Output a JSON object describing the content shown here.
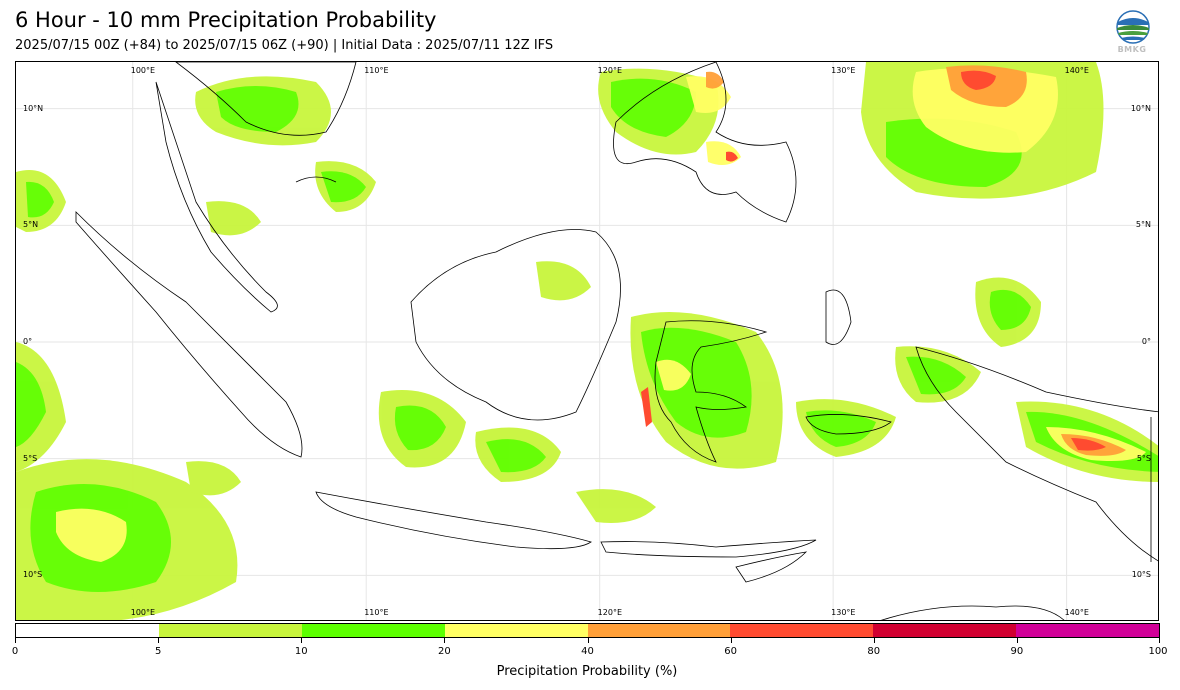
{
  "header": {
    "title": "6 Hour - 10 mm Precipitation Probability",
    "subtitle": "2025/07/15 00Z (+84) to 2025/07/15 06Z (+90) | Initial Data : 2025/07/11 12Z IFS",
    "logo_text": "BMKG"
  },
  "map": {
    "lon_range": [
      95,
      144
    ],
    "lat_range": [
      -12,
      12
    ],
    "grid": true,
    "lon_labels_top": [
      "100°E",
      "110°E",
      "120°E",
      "130°E",
      "140°E"
    ],
    "lon_labels_bottom": [
      "100°E",
      "110°E",
      "120°E",
      "130°E",
      "140°E"
    ],
    "lat_labels_left": [
      "10°N",
      "5°N",
      "0°",
      "5°S",
      "10°S"
    ],
    "lat_labels_right": [
      "10°N",
      "5°N",
      "0°",
      "5°S",
      "10°S"
    ],
    "lon_values": [
      100,
      110,
      120,
      130,
      140
    ],
    "lat_values": [
      10,
      5,
      0,
      -5,
      -10
    ],
    "coastline_color": "#000000"
  },
  "colorbar": {
    "label": "Precipitation Probability (%)",
    "ticks": [
      "0",
      "5",
      "10",
      "20",
      "40",
      "60",
      "80",
      "90",
      "100"
    ],
    "colors": [
      "#ffffff",
      "#c8f53c",
      "#5cff00",
      "#ffff63",
      "#ff9f38",
      "#ff4b30",
      "#d10031",
      "#d10098"
    ]
  }
}
